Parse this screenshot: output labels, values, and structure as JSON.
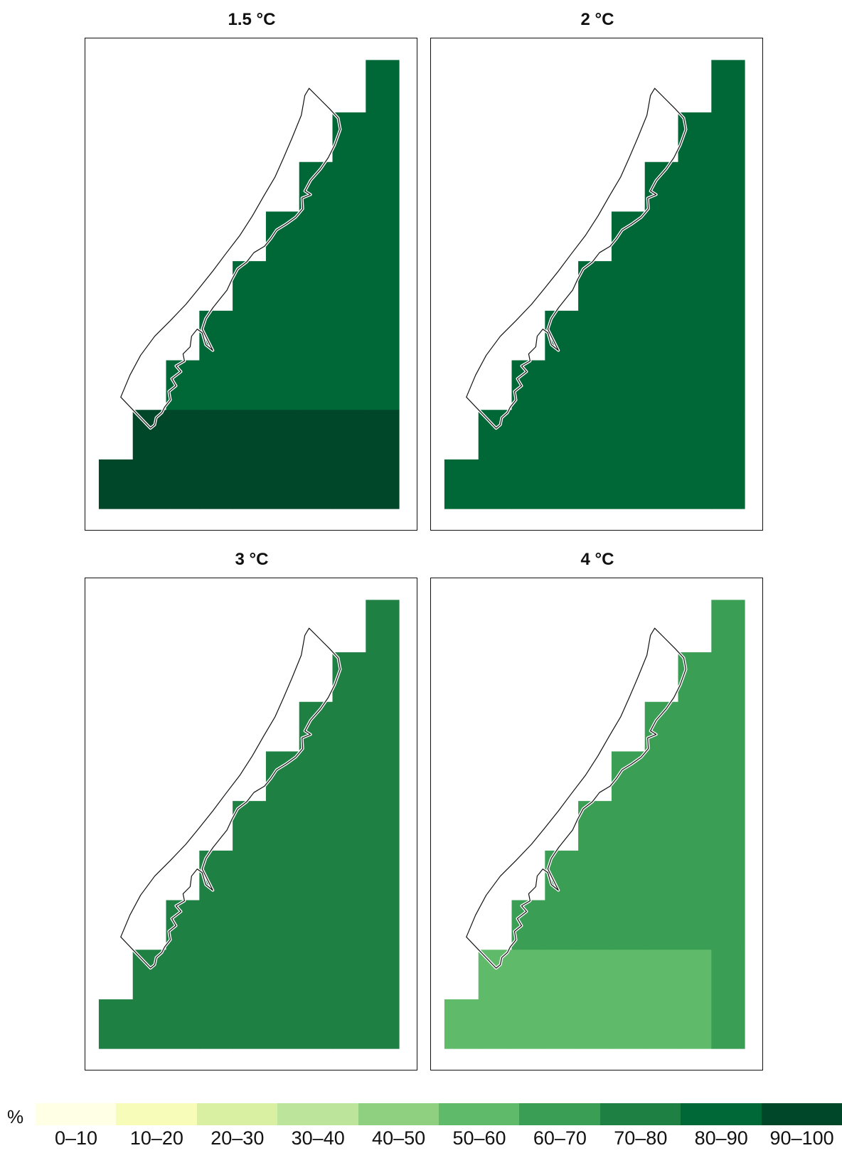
{
  "panels": [
    {
      "title": "1.5 °C",
      "classes": {
        "north": "80–90",
        "south": "90–100",
        "southeast": "90–100"
      }
    },
    {
      "title": "2 °C",
      "classes": {
        "north": "80–90",
        "south": "80–90",
        "southeast": "80–90"
      }
    },
    {
      "title": "3 °C",
      "classes": {
        "north": "70–80",
        "south": "70–80",
        "southeast": "70–80"
      }
    },
    {
      "title": "4 °C",
      "classes": {
        "north": "60–70",
        "south": "50–60",
        "southeast": "60–70"
      }
    }
  ],
  "legend": {
    "unit": "%",
    "classes": [
      {
        "label": "0–10",
        "color": "#ffffe5"
      },
      {
        "label": "10–20",
        "color": "#f7fcb9"
      },
      {
        "label": "20–30",
        "color": "#d9f0a3"
      },
      {
        "label": "30–40",
        "color": "#bce49a"
      },
      {
        "label": "40–50",
        "color": "#8ecf80"
      },
      {
        "label": "50–60",
        "color": "#5fbb6a"
      },
      {
        "label": "60–70",
        "color": "#3a9f54"
      },
      {
        "label": "70–80",
        "color": "#1e8043"
      },
      {
        "label": "80–90",
        "color": "#006837"
      },
      {
        "label": "90–100",
        "color": "#00472a"
      }
    ]
  }
}
